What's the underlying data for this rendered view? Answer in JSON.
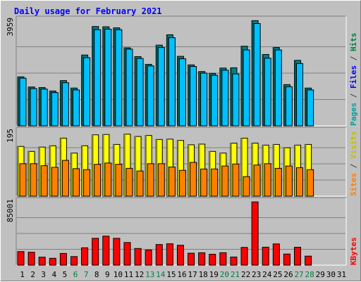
{
  "chart_data": {
    "type": "bar",
    "title": "Daily usage for February 2021",
    "categories": [
      "1",
      "2",
      "3",
      "4",
      "5",
      "6",
      "7",
      "8",
      "9",
      "10",
      "11",
      "12",
      "13",
      "14",
      "15",
      "16",
      "17",
      "18",
      "19",
      "20",
      "21",
      "22",
      "23",
      "24",
      "25",
      "26",
      "27",
      "28",
      "29",
      "30",
      "31"
    ],
    "weekend_days": [
      "6",
      "7",
      "13",
      "14",
      "20",
      "21",
      "27",
      "28"
    ],
    "panels": [
      {
        "id": "top",
        "ymax_label": "3959",
        "ylim": [
          0,
          3959
        ],
        "legend": [
          {
            "text": "Pages",
            "color": "#00a0a0"
          },
          {
            "text": " / ",
            "color": "#404040"
          },
          {
            "text": "Files",
            "color": "#0000ff"
          },
          {
            "text": " / ",
            "color": "#404040"
          },
          {
            "text": "Hits",
            "color": "#008040"
          }
        ],
        "series": [
          {
            "name": "Hits",
            "color": "#008080",
            "values": [
              1840,
              1460,
              1440,
              1310,
              1700,
              1420,
              2660,
              3730,
              3720,
              3680,
              2930,
              2600,
              2310,
              3030,
              3420,
              2610,
              2290,
              2040,
              1970,
              2170,
              2180,
              2990,
              3950,
              2680,
              2940,
              1550,
              2460,
              1420,
              null,
              null,
              null
            ]
          },
          {
            "name": "Files",
            "color": "#00c0ff",
            "values": [
              1790,
              1400,
              1380,
              1250,
              1620,
              1350,
              2560,
              3610,
              3630,
              3610,
              2880,
              2530,
              2250,
              2940,
              3310,
              2520,
              2230,
              1980,
              1900,
              2090,
              1950,
              2850,
              3840,
              2540,
              2850,
              1470,
              2340,
              1350,
              null,
              null,
              null
            ]
          }
        ]
      },
      {
        "id": "mid",
        "ymax_label": "195",
        "ylim": [
          0,
          195
        ],
        "legend": [
          {
            "text": "Sites",
            "color": "#ff8000"
          },
          {
            "text": " / ",
            "color": "#404040"
          },
          {
            "text": "Visits",
            "color": "#c0c000"
          }
        ],
        "series": [
          {
            "name": "Visits",
            "color": "#ffff00",
            "values": [
              150,
              135,
              148,
              152,
              175,
              130,
              152,
              185,
              186,
              156,
              187,
              180,
              183,
              171,
              172,
              168,
              155,
              157,
              135,
              130,
              160,
              175,
              160,
              154,
              156,
              146,
              154,
              156,
              null,
              null,
              null
            ]
          },
          {
            "name": "Sites",
            "color": "#ff8000",
            "values": [
              98,
              98,
              92,
              87,
              108,
              83,
              80,
              96,
              100,
              96,
              84,
              76,
              98,
              98,
              88,
              78,
              102,
              82,
              82,
              91,
              97,
              59,
              94,
              98,
              84,
              91,
              86,
              80,
              null,
              null,
              null
            ]
          }
        ]
      },
      {
        "id": "bot",
        "ymax_label": "85001",
        "ylim": [
          0,
          85001
        ],
        "legend": [
          {
            "text": "KBytes",
            "color": "#ff0000"
          }
        ],
        "series": [
          {
            "name": "KBytes",
            "color": "#ff0000",
            "values": [
              18200,
              17300,
              10700,
              9200,
              15700,
              11500,
              23300,
              36000,
              38900,
              36000,
              30400,
              22400,
              20300,
              27700,
              28700,
              26700,
              16000,
              16600,
              14600,
              16600,
              10900,
              23800,
              84900,
              24100,
              28500,
              14900,
              24000,
              12100,
              null,
              null,
              null
            ]
          }
        ]
      }
    ]
  }
}
